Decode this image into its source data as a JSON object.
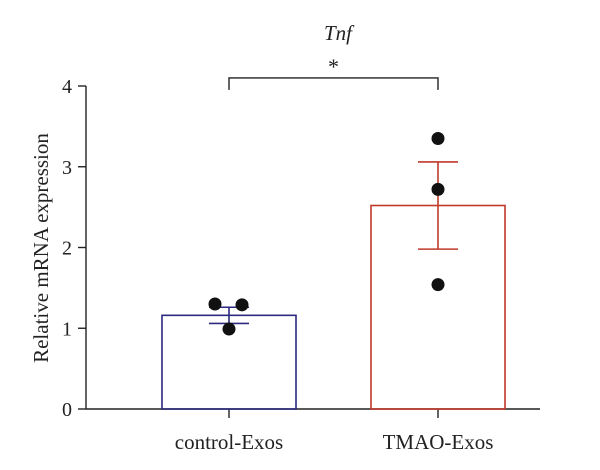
{
  "chart_data": {
    "type": "bar",
    "title": "Tnf",
    "xlabel": "",
    "ylabel": "Relative mRNA expression",
    "ylim": [
      0,
      4
    ],
    "yticks": [
      0,
      1,
      2,
      3,
      4
    ],
    "grid": false,
    "categories": [
      "control-Exos",
      "TMAO-Exos"
    ],
    "values": [
      1.16,
      2.52
    ],
    "error": [
      0.1,
      0.54
    ],
    "points": [
      [
        1.3,
        1.29,
        0.99
      ],
      [
        3.35,
        2.72,
        1.54
      ]
    ],
    "colors": {
      "control-Exos": "#2b2a7e",
      "TMAO-Exos": "#c0392b"
    },
    "significance": {
      "between": [
        0,
        1
      ],
      "label": "*",
      "y": 4.1
    }
  }
}
